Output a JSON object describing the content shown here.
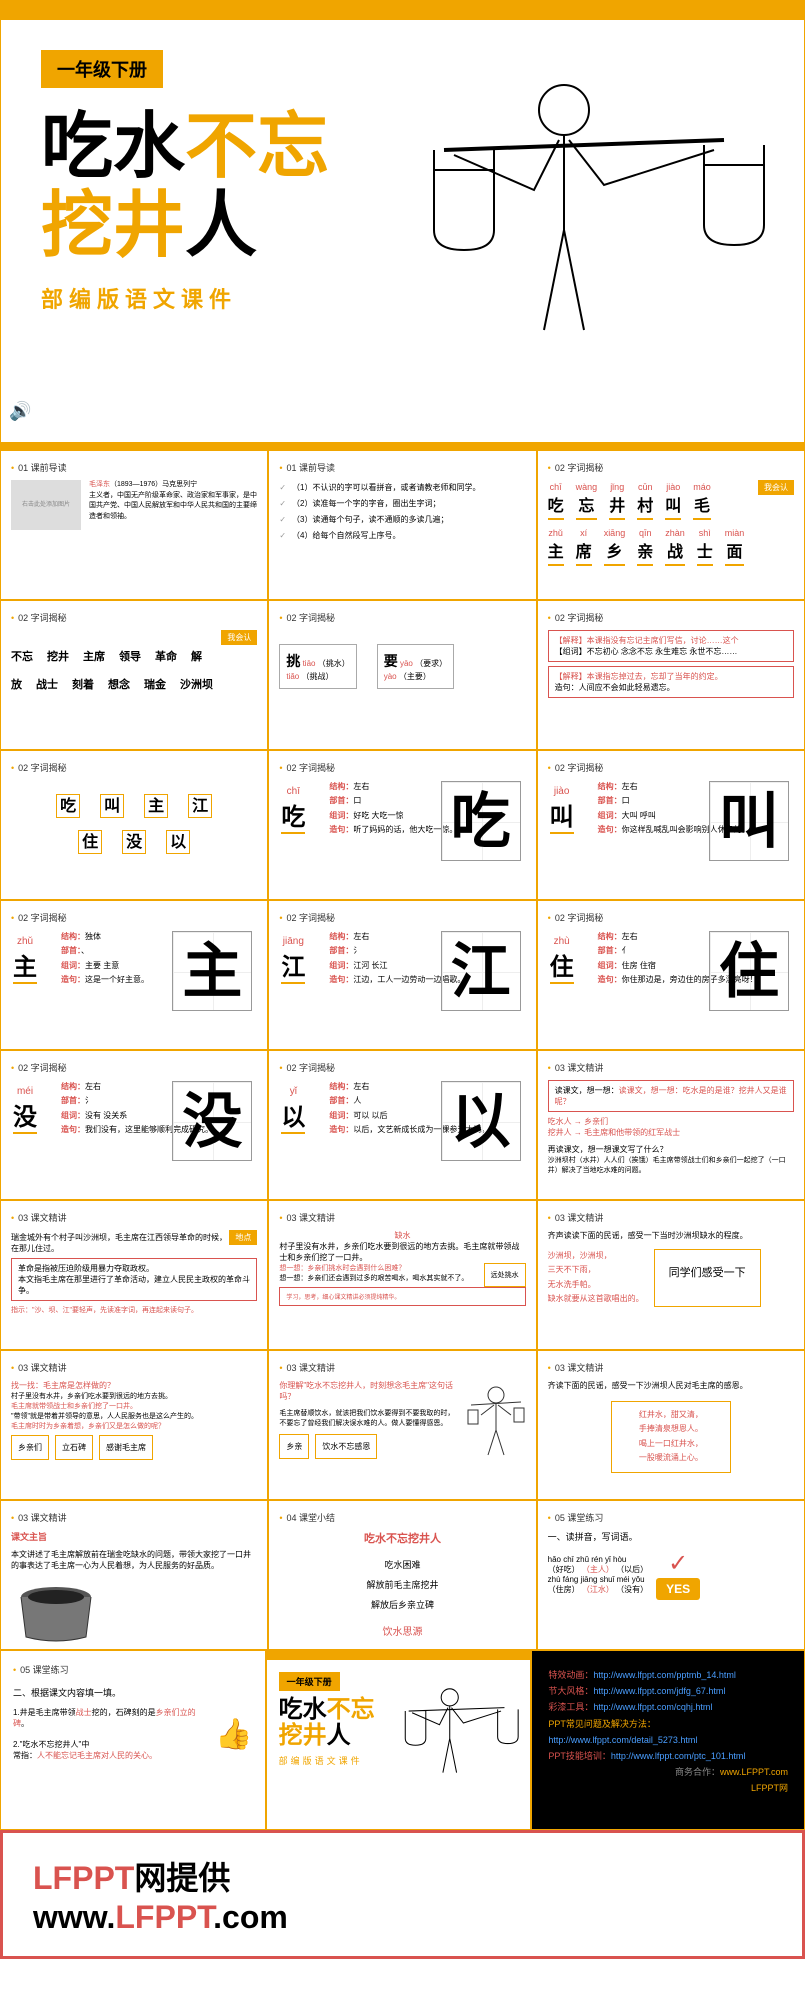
{
  "hero": {
    "badge": "一年级下册",
    "title_line1_a": "吃水",
    "title_line1_b": "不忘",
    "title_line2_a": "挖井",
    "title_line2_b": "人",
    "subtitle": "部编版语文课件"
  },
  "sections": {
    "s01": "01 课前导读",
    "s02": "02 字词揭秘",
    "s03": "03 课文精讲",
    "s04": "04 课堂小结",
    "s05": "05 课堂练习"
  },
  "r1c1": {
    "title": "毛泽东",
    "years": "（1893—1976）马克思列宁",
    "desc": "主义者，中国无产阶级革命家、政治家和军事家，是中国共产党、中国人民解放军和中华人民共和国的主要缔造者和领袖。",
    "placeholder": "右击此处添加图片"
  },
  "r1c2": {
    "items": [
      "（1）不认识的字可以看拼音，或者请教老师和同学。",
      "（2）读准每一个字的字音，圈出生字词；",
      "（3）读通每个句子，读不通顺的多读几遍；",
      "（4）给每个自然段写上序号。"
    ]
  },
  "r1c3": {
    "tag": "我会认",
    "row1": [
      {
        "py": "chī",
        "ch": "吃"
      },
      {
        "py": "wàng",
        "ch": "忘"
      },
      {
        "py": "jǐng",
        "ch": "井"
      },
      {
        "py": "cūn",
        "ch": "村"
      },
      {
        "py": "jiào",
        "ch": "叫"
      },
      {
        "py": "máo",
        "ch": "毛"
      }
    ],
    "row2": [
      {
        "py": "zhǔ",
        "ch": "主"
      },
      {
        "py": "xí",
        "ch": "席"
      },
      {
        "py": "xiāng",
        "ch": "乡"
      },
      {
        "py": "qīn",
        "ch": "亲"
      },
      {
        "py": "zhàn",
        "ch": "战"
      },
      {
        "py": "shì",
        "ch": "士"
      },
      {
        "py": "miàn",
        "ch": "面"
      }
    ]
  },
  "r2c1": {
    "tag": "我会认",
    "words": [
      "不忘",
      "挖井",
      "主席",
      "领导",
      "革命",
      "解放",
      "战士",
      "刻着",
      "想念",
      "瑞金",
      "沙洲坝"
    ]
  },
  "r2c2": {
    "char1": "挑",
    "p1a": "tiāo",
    "p1b": "（挑水）",
    "p1c": "tiǎo",
    "p1d": "（挑战）",
    "char2": "要",
    "p2a": "yāo",
    "p2b": "（要求）",
    "p2c": "yào",
    "p2d": "（主要）"
  },
  "r2c3": {
    "notes": [
      "【解释】本课指没有忘记主席们写信，讨论……这个",
      "【组词】不忘初心 念念不忘 永生难忘 永世不忘……",
      "【解释】本课指忘掉过去，忘却了当年的约定。",
      "造句：人间应不会如此轻易遗忘。"
    ]
  },
  "r3": {
    "chars": [
      "吃",
      "叫",
      "主",
      "江",
      "住",
      "没",
      "以"
    ]
  },
  "char_chi": {
    "py": "chī",
    "ch": "吃",
    "jiegou": "左右",
    "bushou": "口",
    "zuci": "好吃 大吃一惊",
    "zaoju": "听了妈妈的话，他大吃一惊。"
  },
  "char_jiao": {
    "py": "jiào",
    "ch": "叫",
    "jiegou": "左右",
    "bushou": "口",
    "zuci": "大叫 呼叫",
    "zaoju": "你这样乱喊乱叫会影响别人休息的。"
  },
  "char_zhu": {
    "py": "zhǔ",
    "ch": "主",
    "jiegou": "独体",
    "bushou": "、",
    "zuci": "主要 主意",
    "zaoju": "这是一个好主意。"
  },
  "char_jiang": {
    "py": "jiāng",
    "ch": "江",
    "jiegou": "左右",
    "bushou": "氵",
    "zuci": "江河 长江",
    "zaoju": "江边，工人一边劳动一边唱歌。"
  },
  "char_zhu2": {
    "py": "zhù",
    "ch": "住",
    "jiegou": "左右",
    "bushou": "亻",
    "zuci": "住房 住宿",
    "zaoju": "你住那边是，旁边住的房子多漂亮呀！"
  },
  "char_mei": {
    "py": "méi",
    "ch": "没",
    "jiegou": "左右",
    "bushou": "氵",
    "zuci": "没有 没关系",
    "zaoju": "我们没有，这里能够顺利完成研究。"
  },
  "char_yi": {
    "py": "yǐ",
    "ch": "以",
    "jiegou": "左右",
    "bushou": "人",
    "zuci": "可以 以后",
    "zaoju": "以后，文艺新成长成为一棵参天大树。"
  },
  "r5c3": {
    "q1": "读课文，想一想：吃水是的是谁？挖井人又是谁呢？",
    "a1a": "吃水人 → 乡亲们",
    "a1b": "挖井人 → 毛主席和他带领的红军战士",
    "q2": "再读课文，想一想课文写了什么？",
    "a2": "沙洲坝村（水井）人人们（挨饿）毛主席带领战士们和乡亲们一起挖了（一口井）解决了当地吃水难的问题。"
  },
  "r6c1": {
    "t1": "瑞金城外有个村子叫沙洲坝，毛主席在江西领导革命的时候，在那儿住过。",
    "note1": "革命是指被压迫阶级用暴力夺取政权。",
    "note2": "本文指毛主席在那里进行了革命活动，建立人民民主政权的革命斗争。",
    "t2": "指示：\"沙、坝、江\"要轻声，先读准字词，再连起来读句子。",
    "tag1": "地点"
  },
  "r6c2": {
    "title": "缺水",
    "t1": "村子里没有水井，乡亲们吃水要到很远的地方去挑。毛主席就带领战士和乡亲们挖了一口井。",
    "t2": "想一想：乡亲们挑水时会遇到什么困难？",
    "t3": "想一想：乡亲们还会遇到过多的艰苦喝水，喝水其实就不了。",
    "tag": "远处挑水",
    "note": "学习，思考，细心课文精讲必须提纯精华。"
  },
  "r6c3": {
    "t1": "齐声读读下面的民谣，感受一下当时沙洲坝缺水的程度。",
    "lines": [
      "沙洲坝，沙洲坝，",
      "三天不下雨，",
      "无水洗手帕。",
      "缺水就要从这首歌唱出的。"
    ],
    "box": "同学们感受一下"
  },
  "r7c1": {
    "t1": "找一找：毛主席是怎样做的？",
    "t2": "村子里没有水井，乡亲们吃水要到很远的地方去挑。",
    "t3": "毛主席就带领战士和乡亲们挖了一口井。",
    "t4": "\"带领\"就是带着并领导的意思，人人民服务也是这么产生的。",
    "note": "毛主席时时为乡亲着想，乡亲们又是怎么做的呢？",
    "b1": "乡亲们",
    "b2": "立石碑",
    "b3": "感谢毛主席"
  },
  "r7c2": {
    "t1": "你理解\"吃水不忘挖井人，时刻想念毛主席\"这句话吗？",
    "t2": "毛主席替顺饮水，就该把我们饮水要得到不要我取的时，不要忘了曾经我们解决误水难的人。做人要懂得感恩。",
    "b1": "乡亲",
    "b2": "饮水不忘感恩"
  },
  "r7c3": {
    "t1": "齐读下面的民谣，感受一下沙洲坝人民对毛主席的感恩。",
    "lines": [
      "红井水，甜又清，",
      "手捧清泉想恩人。",
      "喝上一口红井水，",
      "一股暖流涌上心。"
    ]
  },
  "r8c1": {
    "title": "课文主旨",
    "text": "本文讲述了毛主席解放前在瑞金吃缺水的问题，带领大家挖了一口井的事表达了毛主席一心为人民着想，为人民服务的好品质。"
  },
  "r8c2": {
    "title": "吃水不忘挖井人",
    "items": [
      "吃水困难",
      "解放前毛主席挖井",
      "解放后乡亲立碑"
    ],
    "bottom": "饮水思源"
  },
  "r8c3": {
    "title": "一、读拼音，写词语。",
    "l1": "hǎo  chī     zhǔ  rén     yǐ  hòu",
    "l2a": "（好吃）",
    "l2b": "（主人）",
    "l2c": "（以后）",
    "l3": "zhù  fáng    jiāng shuǐ   méi  yǒu",
    "l4a": "（住房）",
    "l4b": "（江水）",
    "l4c": "（没有）",
    "yes": "YES"
  },
  "r9c1": {
    "title": "二、根据课文内容填一填。",
    "t1": "1.井是毛主席带领",
    "t1b": "战士",
    "t1c": "挖的，石碑刻的是",
    "t1d": "乡亲们立的碑",
    "t1e": "。",
    "t2": "2.\"吃水不忘挖井人\"中",
    "t3": "常指：",
    "t3b": "人不能忘记毛主席对人民的关心。"
  },
  "footer_links": {
    "l1": "特效动画：",
    "u1": "http://www.lfppt.com/pptmb_14.html",
    "l2": "节大风格：",
    "u2": "http://www.lfppt.com/jdfg_67.html",
    "l3": "彩漆工具：",
    "u3": "http://www.lfppt.com/cqhj.html",
    "l4": "PPT常见问题及解决方法：",
    "u4": "http://www.lfppt.com/detail_5273.html",
    "l5": "PPT技能培训：",
    "u5": "http://www.lfppt.com/ptc_101.html",
    "l6": "商务合作：",
    "u6": "www.LFPPT.com",
    "l7": "LFPPT网"
  },
  "watermark": {
    "red": "LFPPT",
    "black": "网提供",
    "url": "www.LFPPT.com"
  },
  "labels": {
    "jiegou": "结构：",
    "bushou": "部首：",
    "zuci": "组词：",
    "zaoju": "造句："
  }
}
